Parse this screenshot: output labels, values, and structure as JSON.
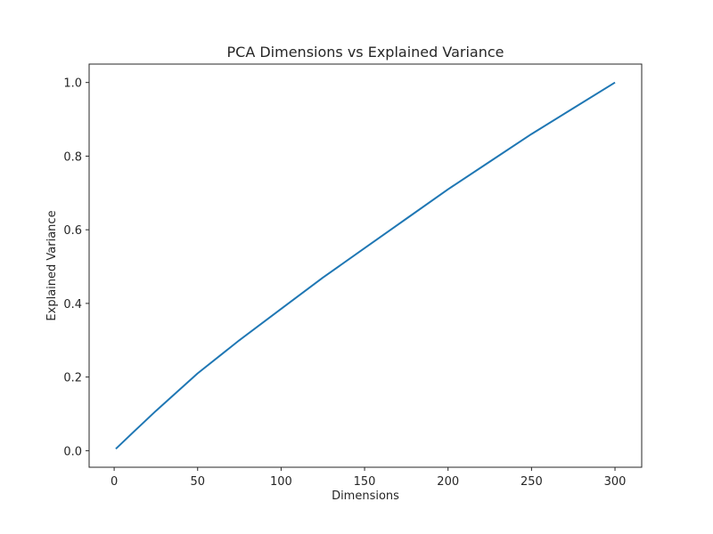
{
  "chart_data": {
    "type": "line",
    "title": "PCA Dimensions vs Explained Variance",
    "xlabel": "Dimensions",
    "ylabel": "Explained Variance",
    "xlim": [
      -15,
      316
    ],
    "ylim": [
      -0.045,
      1.05
    ],
    "xticks": [
      0,
      50,
      100,
      150,
      200,
      250,
      300
    ],
    "xtick_labels": [
      "0",
      "50",
      "100",
      "150",
      "200",
      "250",
      "300"
    ],
    "yticks": [
      0.0,
      0.2,
      0.4,
      0.6,
      0.8,
      1.0
    ],
    "ytick_labels": [
      "0.0",
      "0.2",
      "0.4",
      "0.6",
      "0.8",
      "1.0"
    ],
    "grid": false,
    "legend": "none",
    "series": [
      {
        "color": "#1f77b4",
        "x": [
          1,
          10,
          25,
          50,
          75,
          100,
          125,
          150,
          175,
          200,
          225,
          250,
          275,
          300
        ],
        "y": [
          0.005,
          0.044,
          0.108,
          0.21,
          0.3,
          0.385,
          0.47,
          0.55,
          0.63,
          0.71,
          0.785,
          0.86,
          0.93,
          1.0
        ]
      }
    ]
  }
}
